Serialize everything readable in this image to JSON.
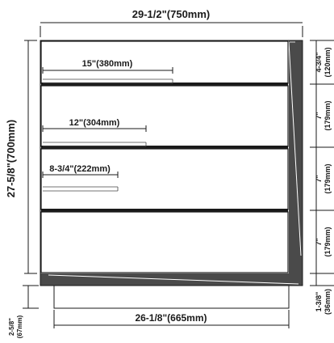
{
  "colors": {
    "ink": "#1a1a1a",
    "panel_dark": "#4a4a4a",
    "background": "#ffffff"
  },
  "dimensions": {
    "overall_width": "29-1/2\"(750mm)",
    "overall_height": "27-5/8\"(700mm)",
    "inner_width": "26-1/8\"(665mm)",
    "drawer_depths": [
      "15\"(380mm)",
      "12\"(304mm)",
      "8-3/4\"(222mm)"
    ],
    "drawer_heights": [
      {
        "inch": "4-3/4\"",
        "mm": "(120mm)"
      },
      {
        "inch": "7\"",
        "mm": "(179mm)"
      },
      {
        "inch": "7\"",
        "mm": "(179mm)"
      },
      {
        "inch": "7\"",
        "mm": "(179mm)"
      }
    ],
    "base_height": {
      "inch": "1-3/8\"",
      "mm": "(36mm)"
    },
    "plinth_height": {
      "inch": "2-5/8\"",
      "mm": "(67mm)"
    }
  }
}
